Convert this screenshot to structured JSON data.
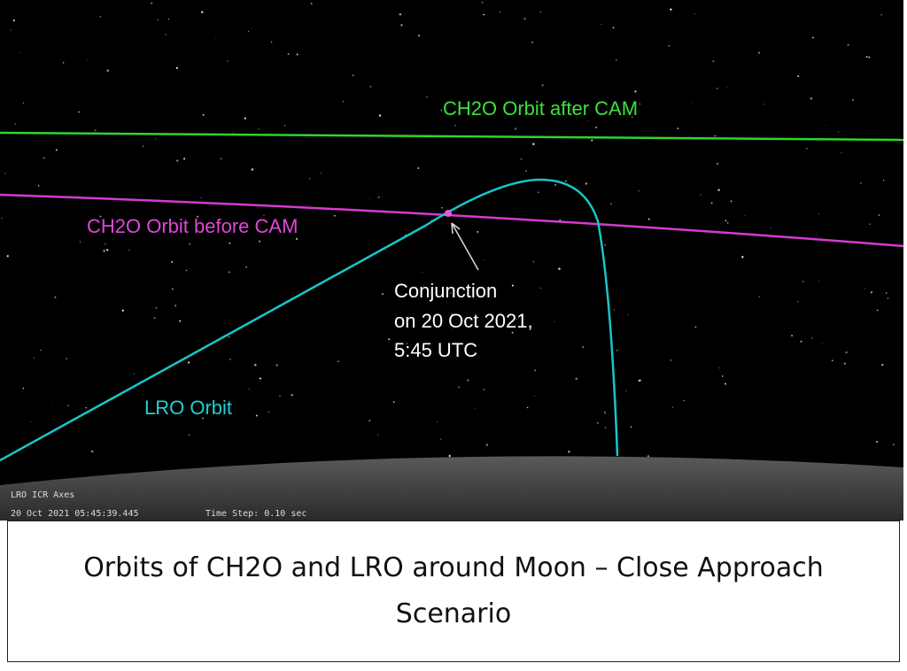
{
  "labels": {
    "after_cam": "CH2O Orbit after CAM",
    "before_cam": "CH2O Orbit before CAM",
    "lro": "LRO Orbit",
    "conjunction": [
      "Conjunction",
      "on 20 Oct 2021,",
      "5:45 UTC"
    ]
  },
  "overlay": {
    "axes": "LRO ICR Axes",
    "time": "20 Oct 2021 05:45:39.445",
    "step": "Time Step: 0.10 sec"
  },
  "caption": "Orbits of CH2O and LRO around Moon – Close Approach Scenario"
}
